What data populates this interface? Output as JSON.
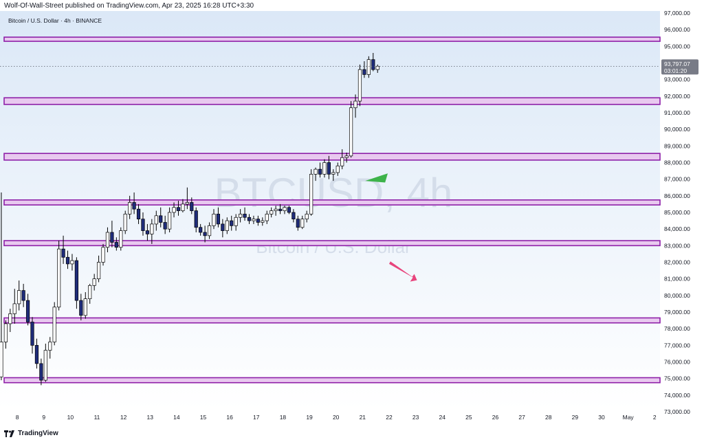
{
  "publisher_line": "Wolf-Of-Wall-Street published on TradingView.com, Apr 23, 2025 16:28 UTC+3:30",
  "footer_logo": "TradingView",
  "colors": {
    "bg_top": "#dbe8f7",
    "bg_bottom": "#ffffff",
    "zone_fill": "#e8c9ef",
    "zone_border": "#8e1fa8",
    "bull_body": "#ffffff",
    "bear_body": "#1f2c7a",
    "wick": "#000000",
    "arrow_green": "#3db34a",
    "arrow_pink": "#e8457d",
    "price_label_bg": "#787b86",
    "text": "#131722"
  },
  "chart_data": {
    "type": "candlestick",
    "title": "Bitcoin / U.S. Dollar · 4h · BINANCE",
    "watermark_main": "BTCUSD, 4h",
    "watermark_sub": "Bitcoin / U.S. Dollar",
    "ylim": [
      73000,
      97000
    ],
    "y_ticks": [
      73000,
      74000,
      75000,
      76000,
      77000,
      78000,
      79000,
      80000,
      81000,
      82000,
      83000,
      84000,
      85000,
      86000,
      87000,
      88000,
      89000,
      90000,
      91000,
      92000,
      93000,
      94000,
      95000,
      96000,
      97000
    ],
    "y_tick_labels": [
      "73,000.00",
      "74,000.00",
      "75,000.00",
      "76,000.00",
      "77,000.00",
      "78,000.00",
      "79,000.00",
      "80,000.00",
      "81,000.00",
      "82,000.00",
      "83,000.00",
      "84,000.00",
      "85,000.00",
      "86,000.00",
      "87,000.00",
      "88,000.00",
      "89,000.00",
      "90,000.00",
      "91,000.00",
      "92,000.00",
      "93,000.00",
      "94,000.00",
      "95,000.00",
      "96,000.00",
      "97,000.00"
    ],
    "x_ticks": [
      "8",
      "9",
      "10",
      "11",
      "12",
      "13",
      "14",
      "15",
      "16",
      "17",
      "18",
      "19",
      "20",
      "21",
      "22",
      "23",
      "24",
      "25",
      "26",
      "27",
      "28",
      "29",
      "30",
      "May",
      "2"
    ],
    "x_start_day": 7.35,
    "x_end_day": 32.2,
    "current_price": "93,797.07",
    "countdown": "03:01:20",
    "current_price_value": 93797.07,
    "zones": [
      {
        "low": 95300,
        "high": 95550
      },
      {
        "low": 91500,
        "high": 91900
      },
      {
        "low": 88150,
        "high": 88550
      },
      {
        "low": 85450,
        "high": 85750
      },
      {
        "low": 83000,
        "high": 83300
      },
      {
        "low": 78350,
        "high": 78650
      },
      {
        "low": 74750,
        "high": 75050
      }
    ],
    "candles": [
      {
        "o": 75100,
        "h": 86200,
        "l": 74900,
        "c": 77200
      },
      {
        "o": 77200,
        "h": 78500,
        "l": 76800,
        "c": 78300
      },
      {
        "o": 78300,
        "h": 79200,
        "l": 77800,
        "c": 78900
      },
      {
        "o": 78900,
        "h": 80400,
        "l": 78300,
        "c": 79500
      },
      {
        "o": 79500,
        "h": 80900,
        "l": 79100,
        "c": 80300
      },
      {
        "o": 80300,
        "h": 80700,
        "l": 79300,
        "c": 79700
      },
      {
        "o": 79700,
        "h": 80100,
        "l": 78200,
        "c": 78400
      },
      {
        "o": 78400,
        "h": 78700,
        "l": 76500,
        "c": 77000
      },
      {
        "o": 77000,
        "h": 77400,
        "l": 75600,
        "c": 75900
      },
      {
        "o": 75900,
        "h": 76200,
        "l": 74600,
        "c": 74900
      },
      {
        "o": 74900,
        "h": 77100,
        "l": 74800,
        "c": 76700
      },
      {
        "o": 76700,
        "h": 77500,
        "l": 76200,
        "c": 77200
      },
      {
        "o": 77200,
        "h": 79600,
        "l": 77000,
        "c": 79300
      },
      {
        "o": 79300,
        "h": 83300,
        "l": 79100,
        "c": 82800
      },
      {
        "o": 82800,
        "h": 83600,
        "l": 81900,
        "c": 82300
      },
      {
        "o": 82300,
        "h": 82700,
        "l": 81600,
        "c": 81900
      },
      {
        "o": 81900,
        "h": 82500,
        "l": 81500,
        "c": 82100
      },
      {
        "o": 82100,
        "h": 82300,
        "l": 79200,
        "c": 79700
      },
      {
        "o": 79700,
        "h": 80100,
        "l": 78500,
        "c": 78800
      },
      {
        "o": 78800,
        "h": 80200,
        "l": 78600,
        "c": 79800
      },
      {
        "o": 79800,
        "h": 80700,
        "l": 79500,
        "c": 80600
      },
      {
        "o": 80600,
        "h": 81300,
        "l": 80300,
        "c": 81000
      },
      {
        "o": 81000,
        "h": 82400,
        "l": 80800,
        "c": 82000
      },
      {
        "o": 82000,
        "h": 83100,
        "l": 81800,
        "c": 82900
      },
      {
        "o": 82900,
        "h": 84100,
        "l": 82600,
        "c": 83800
      },
      {
        "o": 83800,
        "h": 84500,
        "l": 82900,
        "c": 83200
      },
      {
        "o": 83200,
        "h": 83500,
        "l": 82700,
        "c": 82900
      },
      {
        "o": 82900,
        "h": 84100,
        "l": 82700,
        "c": 83900
      },
      {
        "o": 83900,
        "h": 85100,
        "l": 83700,
        "c": 84900
      },
      {
        "o": 84900,
        "h": 86000,
        "l": 84600,
        "c": 85600
      },
      {
        "o": 85600,
        "h": 86200,
        "l": 84900,
        "c": 85200
      },
      {
        "o": 85200,
        "h": 85500,
        "l": 84300,
        "c": 84600
      },
      {
        "o": 84600,
        "h": 85000,
        "l": 83600,
        "c": 83900
      },
      {
        "o": 83900,
        "h": 84300,
        "l": 83300,
        "c": 83700
      },
      {
        "o": 83700,
        "h": 84600,
        "l": 83100,
        "c": 84300
      },
      {
        "o": 84300,
        "h": 85100,
        "l": 83900,
        "c": 84800
      },
      {
        "o": 84800,
        "h": 85300,
        "l": 84100,
        "c": 84400
      },
      {
        "o": 84400,
        "h": 84800,
        "l": 83700,
        "c": 84000
      },
      {
        "o": 84000,
        "h": 85300,
        "l": 83800,
        "c": 85000
      },
      {
        "o": 85000,
        "h": 85600,
        "l": 84700,
        "c": 85300
      },
      {
        "o": 85300,
        "h": 85700,
        "l": 84800,
        "c": 85100
      },
      {
        "o": 85100,
        "h": 85800,
        "l": 85000,
        "c": 85500
      },
      {
        "o": 85500,
        "h": 86500,
        "l": 85200,
        "c": 85600
      },
      {
        "o": 85600,
        "h": 85900,
        "l": 84900,
        "c": 85100
      },
      {
        "o": 85100,
        "h": 85300,
        "l": 83800,
        "c": 84100
      },
      {
        "o": 84100,
        "h": 84300,
        "l": 83600,
        "c": 83800
      },
      {
        "o": 83800,
        "h": 84200,
        "l": 83200,
        "c": 83600
      },
      {
        "o": 83600,
        "h": 84400,
        "l": 83400,
        "c": 84200
      },
      {
        "o": 84200,
        "h": 85200,
        "l": 84000,
        "c": 84900
      },
      {
        "o": 84900,
        "h": 85300,
        "l": 84100,
        "c": 84300
      },
      {
        "o": 84300,
        "h": 84600,
        "l": 83500,
        "c": 83900
      },
      {
        "o": 83900,
        "h": 84700,
        "l": 83700,
        "c": 84500
      },
      {
        "o": 84500,
        "h": 84800,
        "l": 83900,
        "c": 84200
      },
      {
        "o": 84200,
        "h": 84900,
        "l": 83900,
        "c": 84700
      },
      {
        "o": 84700,
        "h": 85200,
        "l": 84400,
        "c": 84900
      },
      {
        "o": 84900,
        "h": 85300,
        "l": 84500,
        "c": 84700
      },
      {
        "o": 84700,
        "h": 84900,
        "l": 84300,
        "c": 84500
      },
      {
        "o": 84500,
        "h": 84800,
        "l": 84300,
        "c": 84600
      },
      {
        "o": 84600,
        "h": 84800,
        "l": 84200,
        "c": 84400
      },
      {
        "o": 84400,
        "h": 84700,
        "l": 84200,
        "c": 84500
      },
      {
        "o": 84500,
        "h": 85100,
        "l": 84300,
        "c": 84900
      },
      {
        "o": 84900,
        "h": 85300,
        "l": 84700,
        "c": 85100
      },
      {
        "o": 85100,
        "h": 85400,
        "l": 84800,
        "c": 85200
      },
      {
        "o": 85200,
        "h": 85500,
        "l": 84900,
        "c": 85100
      },
      {
        "o": 85100,
        "h": 85400,
        "l": 84900,
        "c": 85300
      },
      {
        "o": 85300,
        "h": 85400,
        "l": 84900,
        "c": 85000
      },
      {
        "o": 85000,
        "h": 85200,
        "l": 84400,
        "c": 84600
      },
      {
        "o": 84600,
        "h": 84800,
        "l": 83900,
        "c": 84100
      },
      {
        "o": 84100,
        "h": 84800,
        "l": 84000,
        "c": 84600
      },
      {
        "o": 84600,
        "h": 85100,
        "l": 84400,
        "c": 84900
      },
      {
        "o": 84900,
        "h": 87600,
        "l": 84800,
        "c": 87300
      },
      {
        "o": 87300,
        "h": 87700,
        "l": 86900,
        "c": 87600
      },
      {
        "o": 87600,
        "h": 88000,
        "l": 87100,
        "c": 87300
      },
      {
        "o": 87300,
        "h": 88200,
        "l": 87100,
        "c": 88000
      },
      {
        "o": 88000,
        "h": 88400,
        "l": 87000,
        "c": 87300
      },
      {
        "o": 87300,
        "h": 87600,
        "l": 86900,
        "c": 87400
      },
      {
        "o": 87400,
        "h": 88000,
        "l": 87200,
        "c": 87800
      },
      {
        "o": 87800,
        "h": 88800,
        "l": 87600,
        "c": 88300
      },
      {
        "o": 88300,
        "h": 88600,
        "l": 88000,
        "c": 88400
      },
      {
        "o": 88400,
        "h": 91700,
        "l": 88300,
        "c": 91300
      },
      {
        "o": 91300,
        "h": 92100,
        "l": 90700,
        "c": 91700
      },
      {
        "o": 91700,
        "h": 93900,
        "l": 91400,
        "c": 93600
      },
      {
        "o": 93600,
        "h": 94100,
        "l": 93100,
        "c": 93300
      },
      {
        "o": 93300,
        "h": 94400,
        "l": 93100,
        "c": 94200
      },
      {
        "o": 94200,
        "h": 94600,
        "l": 93500,
        "c": 93600
      },
      {
        "o": 93600,
        "h": 93900,
        "l": 93400,
        "c": 93800
      }
    ]
  }
}
